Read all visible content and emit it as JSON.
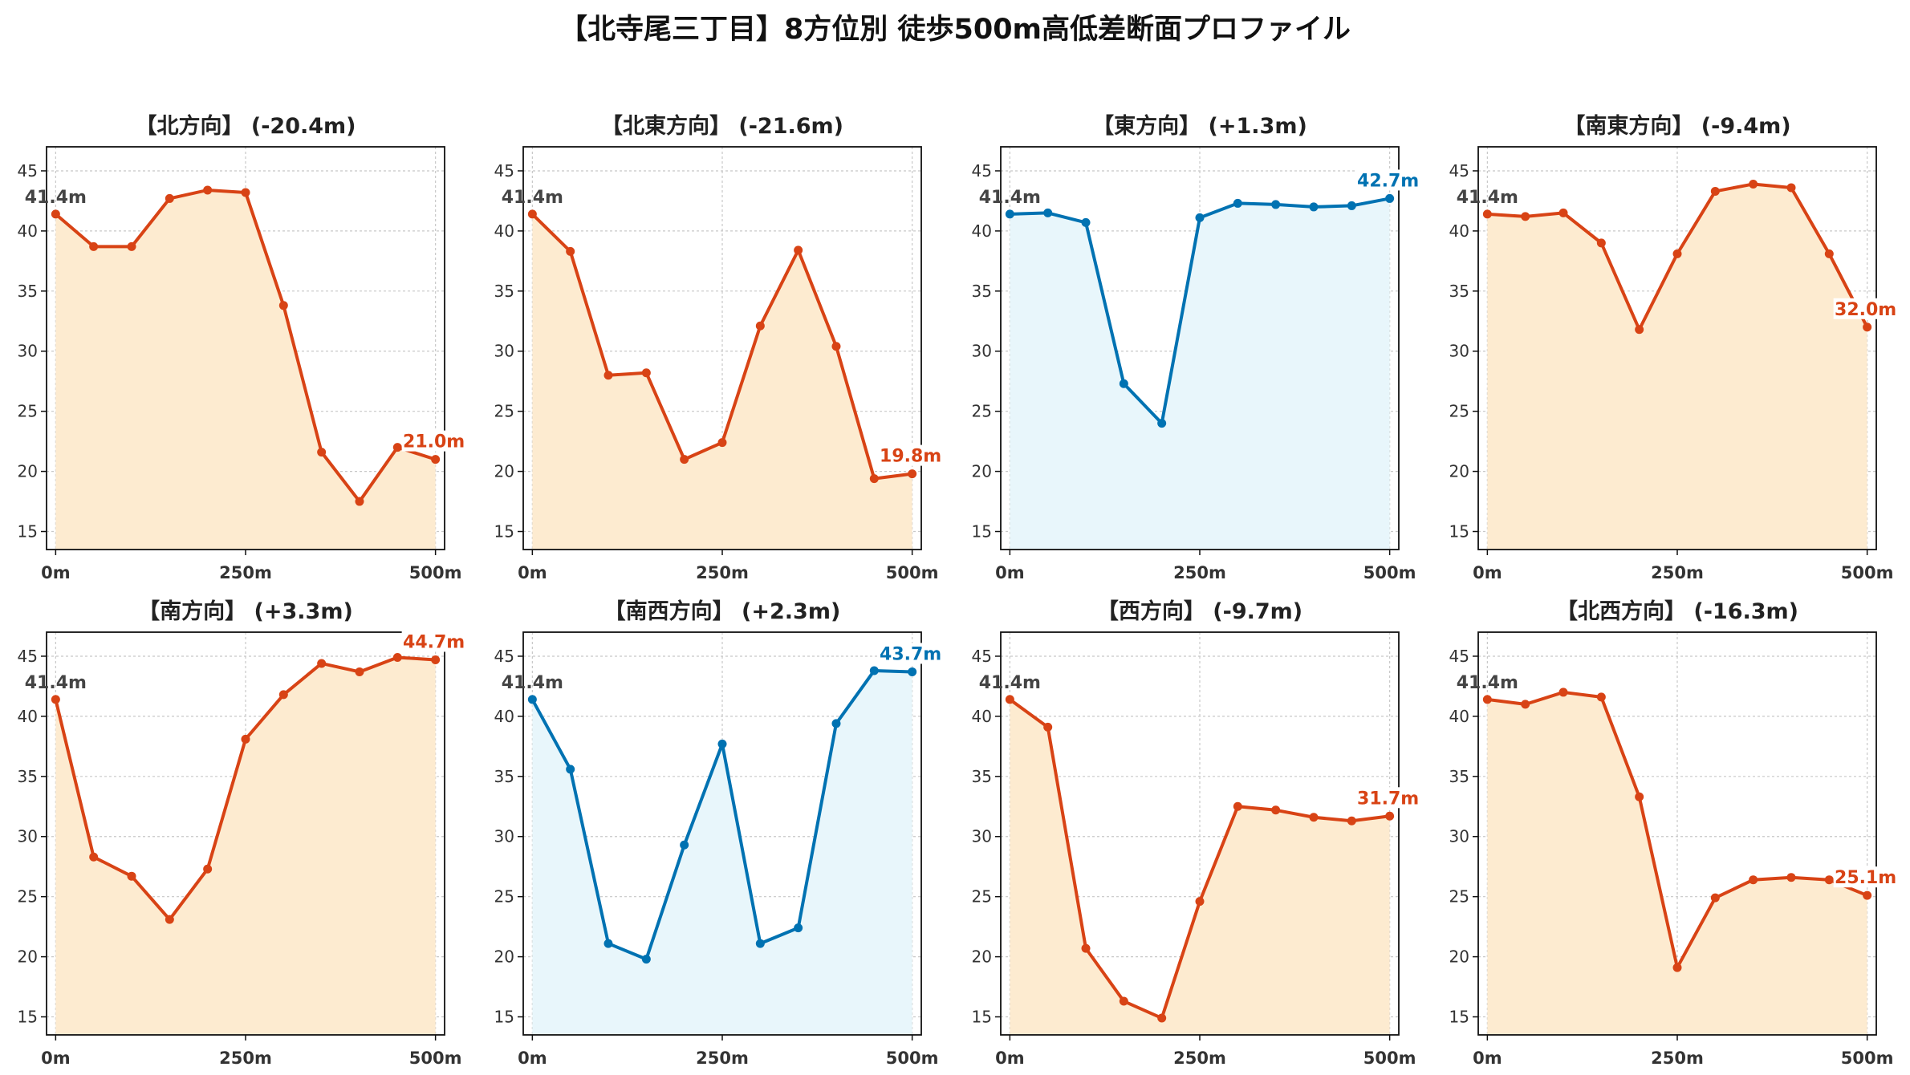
{
  "title": "【北寺尾三丁目】8方位別 徒歩500m高低差断面プロファイル",
  "colors": {
    "down_line": "#D84315",
    "down_fill": "#FDEBD0",
    "up_line": "#0072B2",
    "up_fill": "#E8F6FB",
    "grid": "#c8c8c8",
    "start_label": "#444444"
  },
  "chart_data": [
    {
      "type": "line",
      "title": "【北方向】 (-20.4m)",
      "color": "down",
      "x": [
        0,
        50,
        100,
        150,
        200,
        250,
        300,
        350,
        400,
        450,
        500
      ],
      "y": [
        41.4,
        38.7,
        38.7,
        42.7,
        43.4,
        43.2,
        33.8,
        21.6,
        17.5,
        22.0,
        21.0
      ],
      "start_label": "41.4m",
      "end_label": "21.0m",
      "xticks": [
        "0m",
        "250m",
        "500m"
      ],
      "yticks": [
        15,
        20,
        25,
        30,
        35,
        40,
        45
      ],
      "ylim": [
        13.5,
        47
      ],
      "xlim": [
        -12,
        512
      ],
      "grid": true
    },
    {
      "type": "line",
      "title": "【北東方向】 (-21.6m)",
      "color": "down",
      "x": [
        0,
        50,
        100,
        150,
        200,
        250,
        300,
        350,
        400,
        450,
        500
      ],
      "y": [
        41.4,
        38.3,
        28.0,
        28.2,
        21.0,
        22.4,
        32.1,
        38.4,
        30.4,
        19.4,
        19.8
      ],
      "start_label": "41.4m",
      "end_label": "19.8m",
      "xticks": [
        "0m",
        "250m",
        "500m"
      ],
      "yticks": [
        15,
        20,
        25,
        30,
        35,
        40,
        45
      ],
      "ylim": [
        13.5,
        47
      ],
      "xlim": [
        -12,
        512
      ],
      "grid": true
    },
    {
      "type": "line",
      "title": "【東方向】 (+1.3m)",
      "color": "up",
      "x": [
        0,
        50,
        100,
        150,
        200,
        250,
        300,
        350,
        400,
        450,
        500
      ],
      "y": [
        41.4,
        41.5,
        40.7,
        27.3,
        24.0,
        41.1,
        42.3,
        42.2,
        42.0,
        42.1,
        42.7
      ],
      "start_label": "41.4m",
      "end_label": "42.7m",
      "xticks": [
        "0m",
        "250m",
        "500m"
      ],
      "yticks": [
        15,
        20,
        25,
        30,
        35,
        40,
        45
      ],
      "ylim": [
        13.5,
        47
      ],
      "xlim": [
        -12,
        512
      ],
      "grid": true
    },
    {
      "type": "line",
      "title": "【南東方向】 (-9.4m)",
      "color": "down",
      "x": [
        0,
        50,
        100,
        150,
        200,
        250,
        300,
        350,
        400,
        450,
        500
      ],
      "y": [
        41.4,
        41.2,
        41.5,
        39.0,
        31.8,
        38.1,
        43.3,
        43.9,
        43.6,
        38.1,
        32.0
      ],
      "start_label": "41.4m",
      "end_label": "32.0m",
      "xticks": [
        "0m",
        "250m",
        "500m"
      ],
      "yticks": [
        15,
        20,
        25,
        30,
        35,
        40,
        45
      ],
      "ylim": [
        13.5,
        47
      ],
      "xlim": [
        -12,
        512
      ],
      "grid": true
    },
    {
      "type": "line",
      "title": "【南方向】 (+3.3m)",
      "color": "down",
      "x": [
        0,
        50,
        100,
        150,
        200,
        250,
        300,
        350,
        400,
        450,
        500
      ],
      "y": [
        41.4,
        28.3,
        26.7,
        23.1,
        27.3,
        38.1,
        41.8,
        44.4,
        43.7,
        44.9,
        44.7
      ],
      "start_label": "41.4m",
      "end_label": "44.7m",
      "xticks": [
        "0m",
        "250m",
        "500m"
      ],
      "yticks": [
        15,
        20,
        25,
        30,
        35,
        40,
        45
      ],
      "ylim": [
        13.5,
        47
      ],
      "xlim": [
        -12,
        512
      ],
      "grid": true
    },
    {
      "type": "line",
      "title": "【南西方向】 (+2.3m)",
      "color": "up",
      "x": [
        0,
        50,
        100,
        150,
        200,
        250,
        300,
        350,
        400,
        450,
        500
      ],
      "y": [
        41.4,
        35.6,
        21.1,
        19.8,
        29.3,
        37.7,
        21.1,
        22.4,
        39.4,
        43.8,
        43.7
      ],
      "start_label": "41.4m",
      "end_label": "43.7m",
      "xticks": [
        "0m",
        "250m",
        "500m"
      ],
      "yticks": [
        15,
        20,
        25,
        30,
        35,
        40,
        45
      ],
      "ylim": [
        13.5,
        47
      ],
      "xlim": [
        -12,
        512
      ],
      "grid": true
    },
    {
      "type": "line",
      "title": "【西方向】 (-9.7m)",
      "color": "down",
      "x": [
        0,
        50,
        100,
        150,
        200,
        250,
        300,
        350,
        400,
        450,
        500
      ],
      "y": [
        41.4,
        39.1,
        20.7,
        16.3,
        14.9,
        24.6,
        32.5,
        32.2,
        31.6,
        31.3,
        31.7
      ],
      "start_label": "41.4m",
      "end_label": "31.7m",
      "xticks": [
        "0m",
        "250m",
        "500m"
      ],
      "yticks": [
        15,
        20,
        25,
        30,
        35,
        40,
        45
      ],
      "ylim": [
        13.5,
        47
      ],
      "xlim": [
        -12,
        512
      ],
      "grid": true
    },
    {
      "type": "line",
      "title": "【北西方向】 (-16.3m)",
      "color": "down",
      "x": [
        0,
        50,
        100,
        150,
        200,
        250,
        300,
        350,
        400,
        450,
        500
      ],
      "y": [
        41.4,
        41.0,
        42.0,
        41.6,
        33.3,
        19.1,
        24.9,
        26.4,
        26.6,
        26.4,
        25.1
      ],
      "start_label": "41.4m",
      "end_label": "25.1m",
      "xticks": [
        "0m",
        "250m",
        "500m"
      ],
      "yticks": [
        15,
        20,
        25,
        30,
        35,
        40,
        45
      ],
      "ylim": [
        13.5,
        47
      ],
      "xlim": [
        -12,
        512
      ],
      "grid": true
    }
  ]
}
